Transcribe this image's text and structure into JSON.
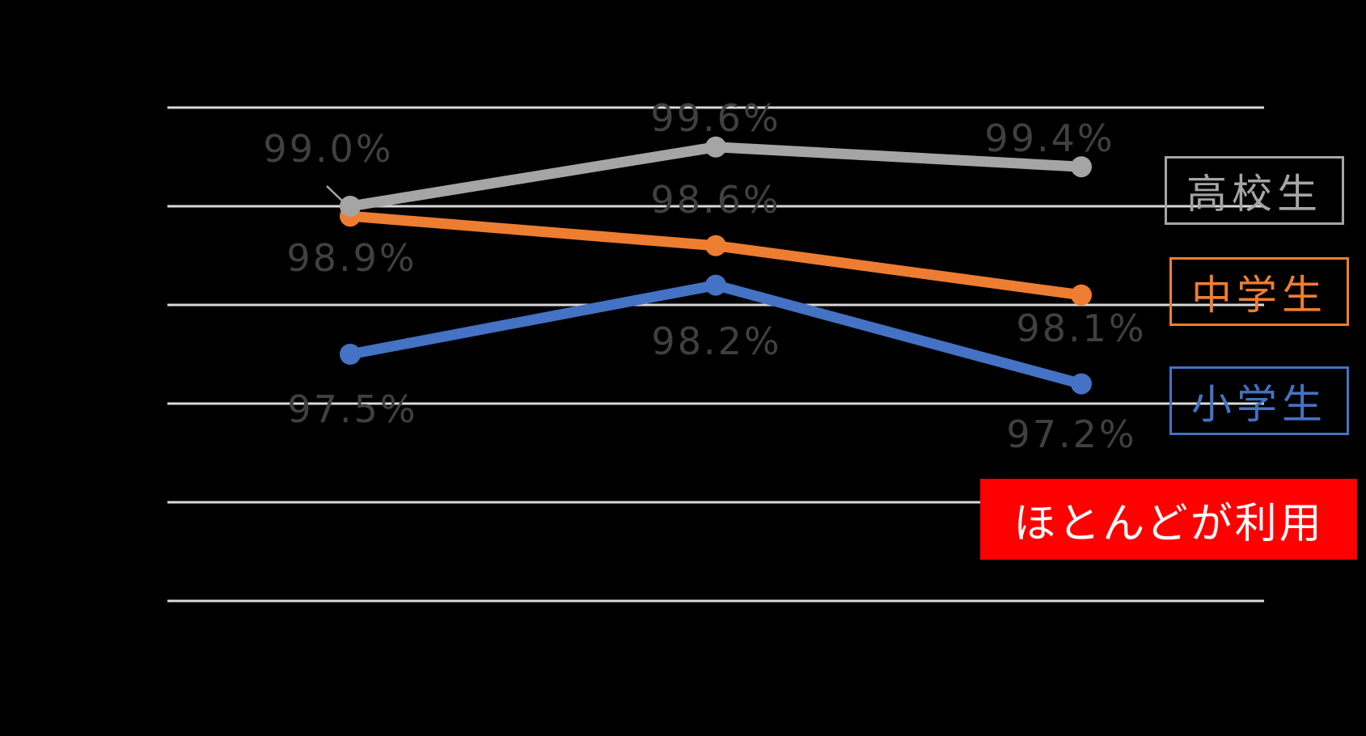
{
  "chart_data": {
    "type": "line",
    "title": "",
    "x_axis_labels_visible": false,
    "series": [
      {
        "name": "高校生",
        "values": [
          99.0,
          99.6,
          99.4
        ],
        "labels": [
          "99.0%",
          "99.6%",
          "99.4%"
        ],
        "color": "#A5A5A5"
      },
      {
        "name": "中学生",
        "values": [
          98.9,
          98.6,
          98.1
        ],
        "labels": [
          "98.9%",
          "98.6%",
          "98.1%"
        ],
        "color": "#ED7D31"
      },
      {
        "name": "小学生",
        "values": [
          97.5,
          98.2,
          97.2
        ],
        "labels": [
          "97.5%",
          "98.2%",
          "97.2%"
        ],
        "color": "#4472C4"
      }
    ],
    "ylim": [
      95,
      100
    ],
    "y_gridline_step_pct": 1,
    "grid": true,
    "gridline_color": "#D9D9D9",
    "data_label_color": "#404040",
    "background_color": "#000000",
    "legend_position": "right",
    "annotation": "ほとんどが利用"
  },
  "legend": {
    "items": [
      {
        "label": "高校生",
        "color": "#A5A5A5"
      },
      {
        "label": "中学生",
        "color": "#ED7D31"
      },
      {
        "label": "小学生",
        "color": "#4472C4"
      }
    ]
  },
  "annotation": {
    "text": "ほとんどが利用",
    "background": "#FF0000",
    "text_color": "#FFFFFF"
  }
}
